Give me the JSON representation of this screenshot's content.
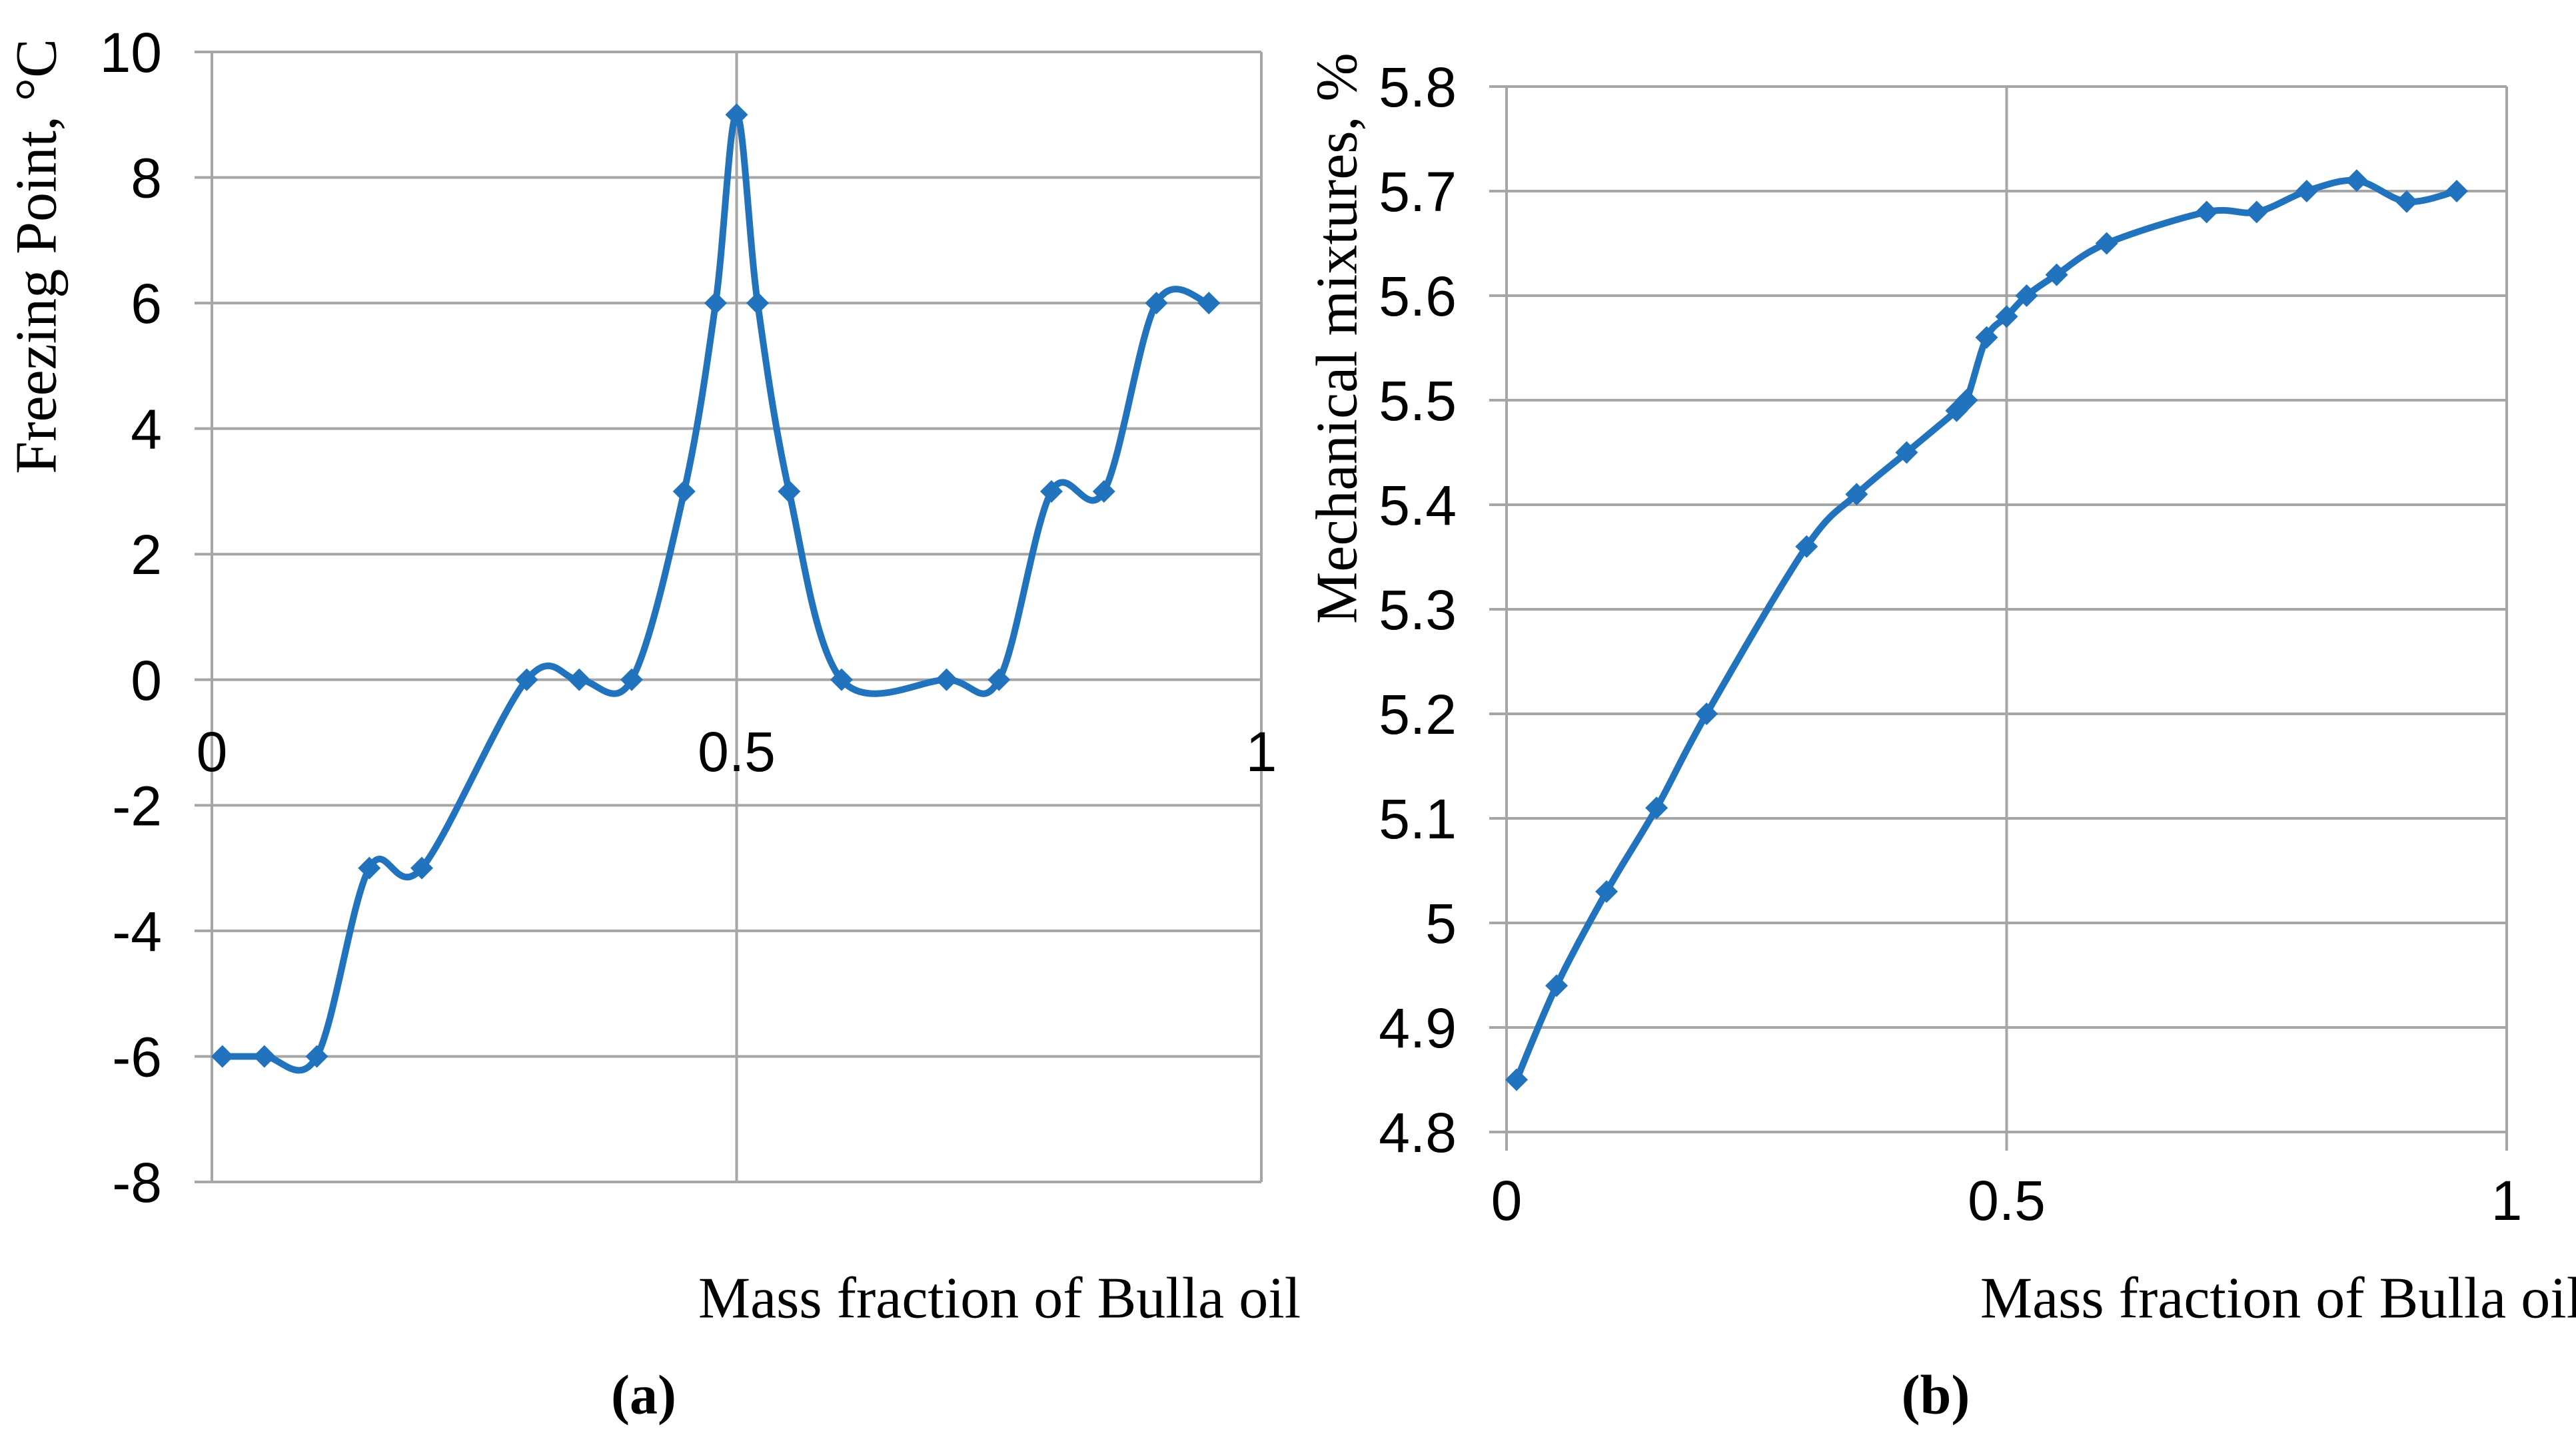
{
  "figure": {
    "background": "#ffffff",
    "panels": [
      {
        "caption": "(a)"
      },
      {
        "caption": "(b)"
      }
    ]
  },
  "chart_data": [
    {
      "type": "line",
      "panel": "a",
      "title": "",
      "xlabel": "Mass fraction of Bulla oil",
      "ylabel": "Freezing Point, °C",
      "x": [
        0.01,
        0.05,
        0.1,
        0.15,
        0.2,
        0.3,
        0.35,
        0.4,
        0.45,
        0.48,
        0.5,
        0.52,
        0.55,
        0.6,
        0.7,
        0.75,
        0.8,
        0.85,
        0.9,
        0.95
      ],
      "y": [
        -6,
        -6,
        -6,
        -3,
        -3,
        0,
        0,
        0,
        3,
        6,
        9,
        6,
        3,
        0,
        0,
        0,
        3,
        3,
        6,
        6
      ],
      "xlim": [
        0,
        1
      ],
      "ylim": [
        -8,
        10
      ],
      "xticks": [
        0,
        0.5,
        1
      ],
      "x_tick_labels": [
        "0",
        "0.5",
        "1"
      ],
      "yticks": [
        10,
        8,
        6,
        4,
        2,
        0,
        -2,
        -4,
        -6,
        -8
      ],
      "y_tick_labels": [
        "10",
        "8",
        "6",
        "4",
        "2",
        "0",
        "-2",
        "-4",
        "-6",
        "-8"
      ],
      "grid": true,
      "legend": "none",
      "marker": "diamond",
      "smooth": true,
      "line_color": "#2173BD",
      "grid_color": "#A6A6A6"
    },
    {
      "type": "line",
      "panel": "b",
      "title": "",
      "xlabel": "Mass fraction of Bulla oil",
      "ylabel": "Mechanical mixtures, %",
      "x": [
        0.01,
        0.05,
        0.1,
        0.15,
        0.2,
        0.3,
        0.35,
        0.4,
        0.45,
        0.46,
        0.48,
        0.5,
        0.52,
        0.55,
        0.6,
        0.7,
        0.75,
        0.8,
        0.85,
        0.9,
        0.95
      ],
      "y": [
        4.85,
        4.94,
        5.03,
        5.11,
        5.2,
        5.36,
        5.41,
        5.45,
        5.49,
        5.5,
        5.56,
        5.58,
        5.6,
        5.62,
        5.65,
        5.68,
        5.68,
        5.7,
        5.71,
        5.69,
        5.7
      ],
      "xlim": [
        0,
        1
      ],
      "ylim": [
        4.8,
        5.8
      ],
      "xticks": [
        0,
        0.5,
        1
      ],
      "x_tick_labels": [
        "0",
        "0.5",
        "1"
      ],
      "yticks": [
        5.8,
        5.7,
        5.6,
        5.5,
        5.4,
        5.3,
        5.2,
        5.1,
        5,
        4.9,
        4.8
      ],
      "y_tick_labels": [
        "5.8",
        "5.7",
        "5.6",
        "5.5",
        "5.4",
        "5.3",
        "5.2",
        "5.1",
        "5",
        "4.9",
        "4.8"
      ],
      "grid": true,
      "legend": "none",
      "marker": "diamond",
      "smooth": true,
      "line_color": "#2173BD",
      "grid_color": "#A6A6A6"
    }
  ]
}
